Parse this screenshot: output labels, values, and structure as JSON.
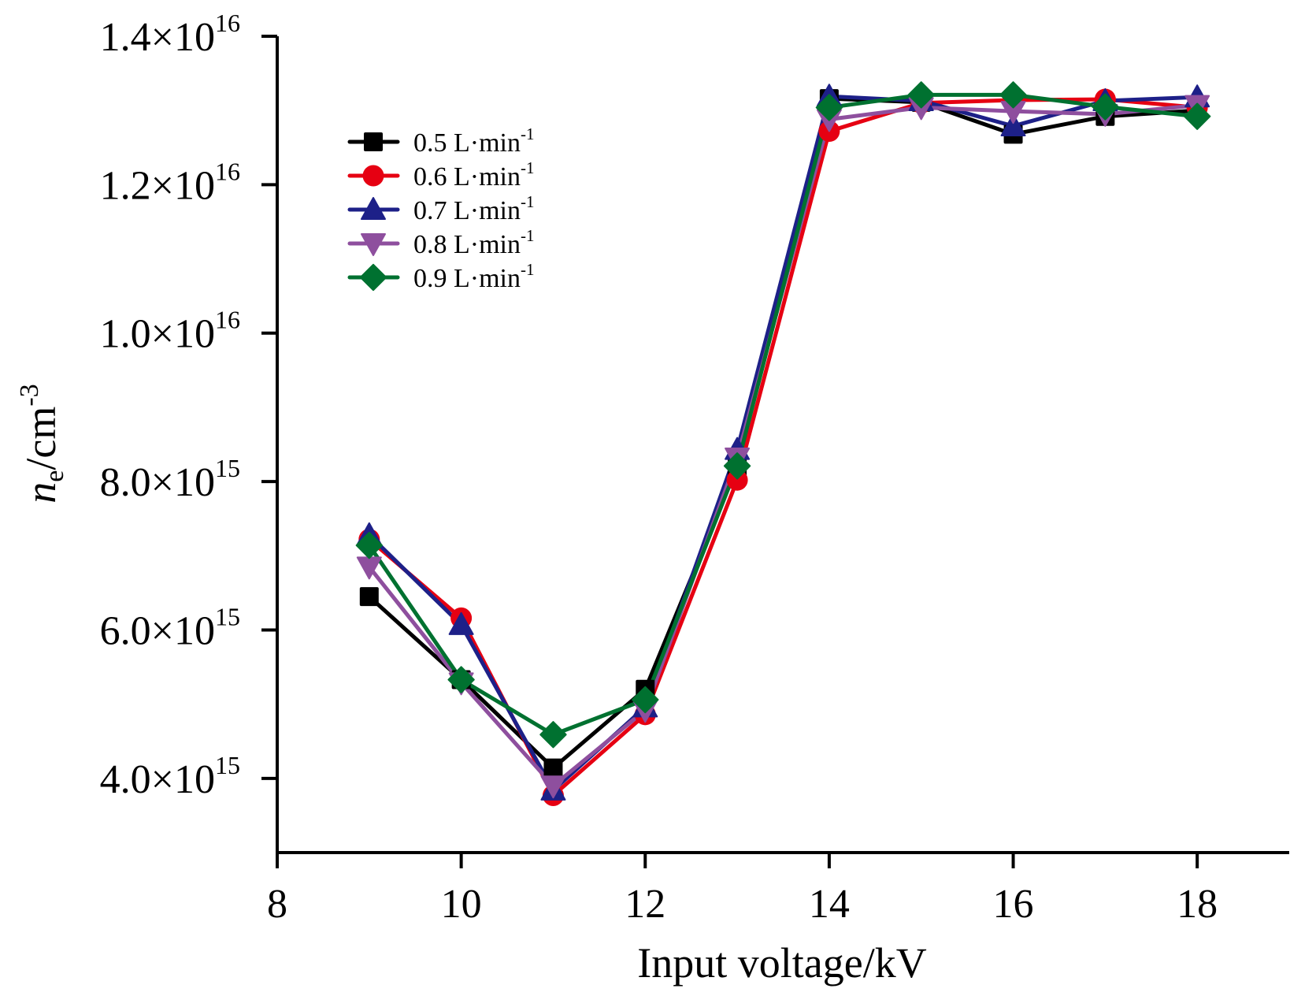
{
  "chart_data": {
    "type": "line",
    "title": "",
    "xlabel": "Input voltage/kV",
    "ylabel": {
      "main": "n",
      "subscript": "e",
      "unit": "/cm",
      "superscript": "-3"
    },
    "xlim": [
      8,
      19
    ],
    "ylim": [
      3000000000000000.0,
      1.4e+16
    ],
    "grid": false,
    "legend_position": "top-left",
    "x_ticks": [
      {
        "value": 8,
        "label": "8"
      },
      {
        "value": 10,
        "label": "10"
      },
      {
        "value": 12,
        "label": "12"
      },
      {
        "value": 14,
        "label": "14"
      },
      {
        "value": 16,
        "label": "16"
      },
      {
        "value": 18,
        "label": "18"
      }
    ],
    "y_ticks": [
      {
        "value": 4000000000000000.0,
        "mantissa": "4.0×10",
        "exponent": "15"
      },
      {
        "value": 6000000000000000.0,
        "mantissa": "6.0×10",
        "exponent": "15"
      },
      {
        "value": 8000000000000000.0,
        "mantissa": "8.0×10",
        "exponent": "15"
      },
      {
        "value": 1e+16,
        "mantissa": "1.0×10",
        "exponent": "16"
      },
      {
        "value": 1.2e+16,
        "mantissa": "1.2×10",
        "exponent": "16"
      },
      {
        "value": 1.4e+16,
        "mantissa": "1.4×10",
        "exponent": "16"
      }
    ],
    "x": [
      9,
      10,
      11,
      12,
      13,
      14,
      15,
      16,
      17,
      18
    ],
    "series": [
      {
        "name": "0.5 L·min",
        "name_sup": "-1",
        "color": "#000000",
        "marker": "square",
        "values": [
          6450000000000000.0,
          5330000000000000.0,
          4140000000000000.0,
          5200000000000000.0,
          8200000000000000.0,
          1.316e+16,
          1.311e+16,
          1.268e+16,
          1.292e+16,
          1.3e+16
        ]
      },
      {
        "name": "0.6 L·min",
        "name_sup": "-1",
        "color": "#E60012",
        "marker": "circle",
        "values": [
          7220000000000000.0,
          6160000000000000.0,
          3770000000000000.0,
          4860000000000000.0,
          8020000000000000.0,
          1.272e+16,
          1.31e+16,
          1.314e+16,
          1.315e+16,
          1.304e+16
        ]
      },
      {
        "name": "0.7 L·min",
        "name_sup": "-1",
        "color": "#1D2088",
        "marker": "triangle-up",
        "values": [
          7280000000000000.0,
          6070000000000000.0,
          3840000000000000.0,
          4960000000000000.0,
          8430000000000000.0,
          1.319e+16,
          1.313e+16,
          1.279e+16,
          1.313e+16,
          1.318e+16
        ]
      },
      {
        "name": "0.8 L·min",
        "name_sup": "-1",
        "color": "#8E4F9E",
        "marker": "triangle-down",
        "values": [
          6850000000000000.0,
          5290000000000000.0,
          3900000000000000.0,
          4920000000000000.0,
          8320000000000000.0,
          1.288e+16,
          1.304e+16,
          1.299e+16,
          1.295e+16,
          1.307e+16
        ]
      },
      {
        "name": "0.9 L·min",
        "name_sup": "-1",
        "color": "#007130",
        "marker": "diamond",
        "values": [
          7140000000000000.0,
          5330000000000000.0,
          4590000000000000.0,
          5060000000000000.0,
          8210000000000000.0,
          1.304e+16,
          1.321e+16,
          1.321e+16,
          1.305e+16,
          1.292e+16
        ]
      }
    ]
  }
}
